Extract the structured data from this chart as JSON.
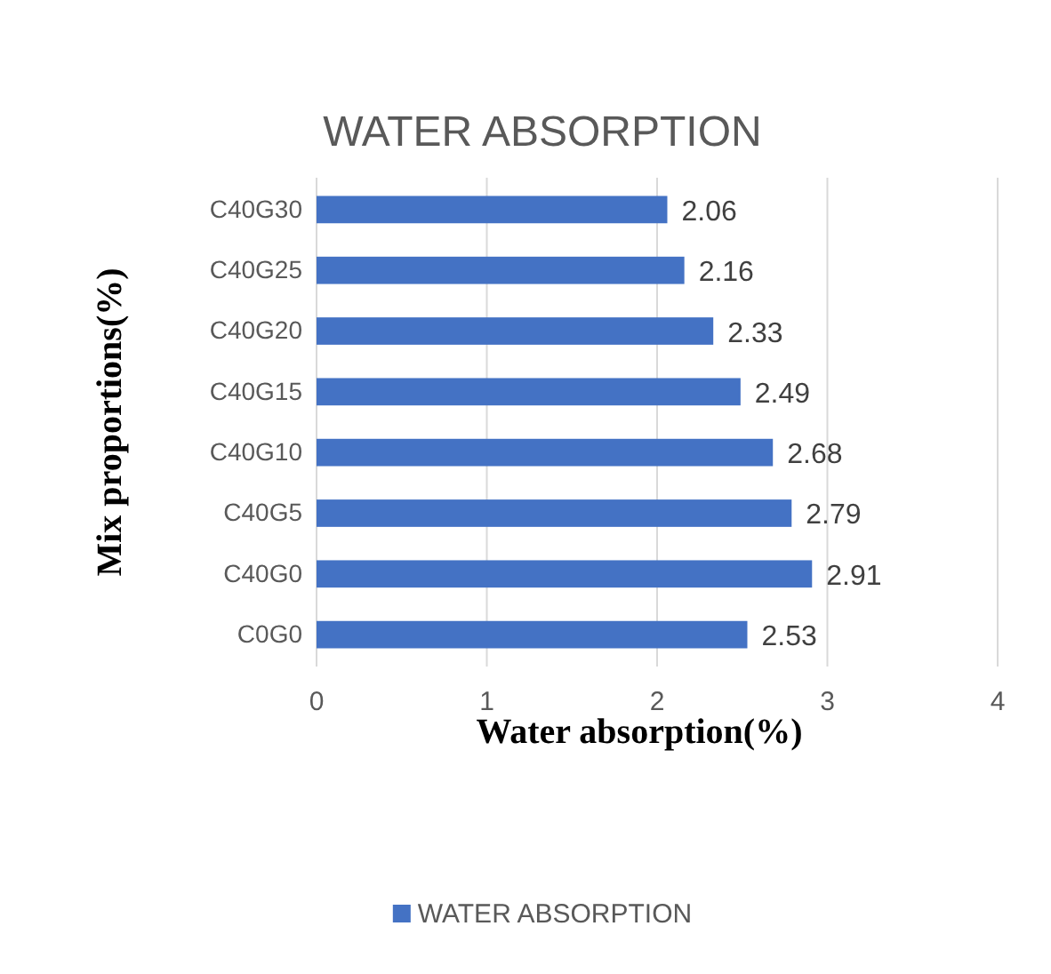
{
  "chart_data": {
    "type": "bar",
    "orientation": "horizontal",
    "title": "WATER ABSORPTION",
    "xlabel": "Water absorption(%)",
    "ylabel": "Mix proportions(%)",
    "categories": [
      "C40G30",
      "C40G25",
      "C40G20",
      "C40G15",
      "C40G10",
      "C40G5",
      "C40G0",
      "C0G0"
    ],
    "series": [
      {
        "name": "WATER ABSORPTION",
        "color": "#4472c4",
        "values": [
          2.06,
          2.16,
          2.33,
          2.49,
          2.68,
          2.79,
          2.91,
          2.53
        ]
      }
    ],
    "xlim": [
      0,
      4
    ],
    "xticks": [
      0,
      1,
      2,
      3,
      4
    ],
    "grid": "x",
    "data_labels": true,
    "legend": "bottom"
  }
}
